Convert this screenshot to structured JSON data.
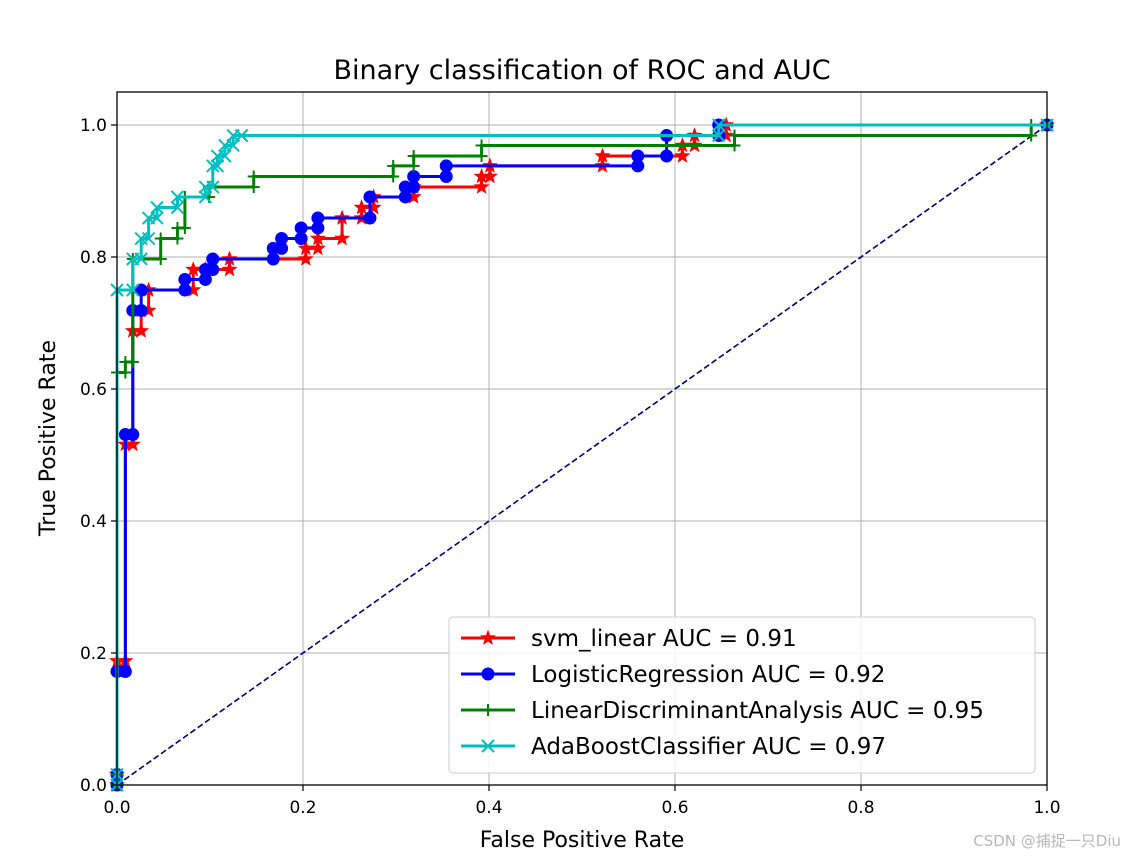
{
  "chart_data": {
    "type": "line",
    "title": "Binary classification of ROC and AUC",
    "xlabel": "False Positive Rate",
    "ylabel": "True Positive Rate",
    "xlim": [
      0.0,
      1.0
    ],
    "ylim": [
      0.0,
      1.05
    ],
    "xticks": [
      "0.0",
      "0.2",
      "0.4",
      "0.6",
      "0.8",
      "1.0"
    ],
    "yticks": [
      "0.0",
      "0.2",
      "0.4",
      "0.6",
      "0.8",
      "1.0"
    ],
    "grid": true,
    "legend_position": "lower-right",
    "reference_line": {
      "x": [
        0,
        1
      ],
      "y": [
        0,
        1
      ],
      "color": "#000080",
      "style": "dashed"
    },
    "series": [
      {
        "name": "svm_linear AUC = 0.91",
        "color": "#ff0000",
        "marker": "star",
        "points": [
          [
            0,
            0
          ],
          [
            0,
            0.016
          ],
          [
            0,
            0.188
          ],
          [
            0.009,
            0.188
          ],
          [
            0.009,
            0.516
          ],
          [
            0.017,
            0.516
          ],
          [
            0.017,
            0.688
          ],
          [
            0.026,
            0.688
          ],
          [
            0.026,
            0.719
          ],
          [
            0.034,
            0.719
          ],
          [
            0.034,
            0.75
          ],
          [
            0.082,
            0.75
          ],
          [
            0.082,
            0.781
          ],
          [
            0.095,
            0.781
          ],
          [
            0.095,
            0.781
          ],
          [
            0.121,
            0.781
          ],
          [
            0.121,
            0.797
          ],
          [
            0.203,
            0.797
          ],
          [
            0.203,
            0.813
          ],
          [
            0.216,
            0.813
          ],
          [
            0.216,
            0.828
          ],
          [
            0.242,
            0.828
          ],
          [
            0.242,
            0.859
          ],
          [
            0.263,
            0.859
          ],
          [
            0.263,
            0.875
          ],
          [
            0.276,
            0.875
          ],
          [
            0.276,
            0.891
          ],
          [
            0.319,
            0.891
          ],
          [
            0.319,
            0.906
          ],
          [
            0.392,
            0.906
          ],
          [
            0.392,
            0.922
          ],
          [
            0.401,
            0.922
          ],
          [
            0.401,
            0.938
          ],
          [
            0.522,
            0.938
          ],
          [
            0.522,
            0.953
          ],
          [
            0.608,
            0.953
          ],
          [
            0.608,
            0.969
          ],
          [
            0.621,
            0.969
          ],
          [
            0.621,
            0.984
          ],
          [
            0.655,
            0.984
          ],
          [
            0.655,
            1.0
          ],
          [
            1.0,
            1.0
          ]
        ]
      },
      {
        "name": "LogisticRegression AUC = 0.92",
        "color": "#0000ff",
        "marker": "circle",
        "points": [
          [
            0,
            0
          ],
          [
            0,
            0.016
          ],
          [
            0,
            0.172
          ],
          [
            0.009,
            0.172
          ],
          [
            0.009,
            0.531
          ],
          [
            0.017,
            0.531
          ],
          [
            0.017,
            0.719
          ],
          [
            0.026,
            0.719
          ],
          [
            0.026,
            0.75
          ],
          [
            0.073,
            0.75
          ],
          [
            0.073,
            0.766
          ],
          [
            0.095,
            0.766
          ],
          [
            0.095,
            0.781
          ],
          [
            0.103,
            0.781
          ],
          [
            0.103,
            0.797
          ],
          [
            0.168,
            0.797
          ],
          [
            0.168,
            0.813
          ],
          [
            0.177,
            0.813
          ],
          [
            0.177,
            0.828
          ],
          [
            0.198,
            0.828
          ],
          [
            0.198,
            0.844
          ],
          [
            0.216,
            0.844
          ],
          [
            0.216,
            0.859
          ],
          [
            0.272,
            0.859
          ],
          [
            0.272,
            0.891
          ],
          [
            0.31,
            0.891
          ],
          [
            0.31,
            0.906
          ],
          [
            0.319,
            0.906
          ],
          [
            0.319,
            0.922
          ],
          [
            0.354,
            0.922
          ],
          [
            0.354,
            0.938
          ],
          [
            0.56,
            0.938
          ],
          [
            0.56,
            0.953
          ],
          [
            0.591,
            0.953
          ],
          [
            0.591,
            0.984
          ],
          [
            0.647,
            0.984
          ],
          [
            0.647,
            1.0
          ],
          [
            1.0,
            1.0
          ]
        ]
      },
      {
        "name": "LinearDiscriminantAnalysis AUC = 0.95",
        "color": "#008000",
        "marker": "plus",
        "points": [
          [
            0,
            0
          ],
          [
            0,
            0.016
          ],
          [
            0,
            0.625
          ],
          [
            0.009,
            0.625
          ],
          [
            0.009,
            0.641
          ],
          [
            0.017,
            0.641
          ],
          [
            0.017,
            0.797
          ],
          [
            0.047,
            0.797
          ],
          [
            0.047,
            0.828
          ],
          [
            0.065,
            0.828
          ],
          [
            0.065,
            0.844
          ],
          [
            0.073,
            0.844
          ],
          [
            0.073,
            0.891
          ],
          [
            0.099,
            0.891
          ],
          [
            0.099,
            0.906
          ],
          [
            0.147,
            0.906
          ],
          [
            0.147,
            0.922
          ],
          [
            0.297,
            0.922
          ],
          [
            0.297,
            0.938
          ],
          [
            0.319,
            0.938
          ],
          [
            0.319,
            0.953
          ],
          [
            0.392,
            0.953
          ],
          [
            0.392,
            0.969
          ],
          [
            0.664,
            0.969
          ],
          [
            0.664,
            0.984
          ],
          [
            0.983,
            0.984
          ],
          [
            0.983,
            1.0
          ],
          [
            1.0,
            1.0
          ]
        ]
      },
      {
        "name": "AdaBoostClassifier AUC = 0.97",
        "color": "#00bfbf",
        "marker": "x",
        "points": [
          [
            0,
            0
          ],
          [
            0,
            0.016
          ],
          [
            0,
            0.75
          ],
          [
            0.017,
            0.75
          ],
          [
            0.017,
            0.797
          ],
          [
            0.026,
            0.797
          ],
          [
            0.026,
            0.828
          ],
          [
            0.034,
            0.828
          ],
          [
            0.034,
            0.859
          ],
          [
            0.043,
            0.859
          ],
          [
            0.043,
            0.875
          ],
          [
            0.065,
            0.875
          ],
          [
            0.065,
            0.891
          ],
          [
            0.095,
            0.891
          ],
          [
            0.095,
            0.906
          ],
          [
            0.103,
            0.906
          ],
          [
            0.103,
            0.938
          ],
          [
            0.108,
            0.938
          ],
          [
            0.108,
            0.953
          ],
          [
            0.116,
            0.953
          ],
          [
            0.116,
            0.969
          ],
          [
            0.125,
            0.969
          ],
          [
            0.125,
            0.984
          ],
          [
            0.134,
            0.984
          ],
          [
            0.134,
            0.984
          ],
          [
            0.647,
            0.984
          ],
          [
            0.647,
            1.0
          ],
          [
            1.0,
            1.0
          ]
        ]
      }
    ]
  },
  "watermark": "CSDN @捕捉一只Diu"
}
